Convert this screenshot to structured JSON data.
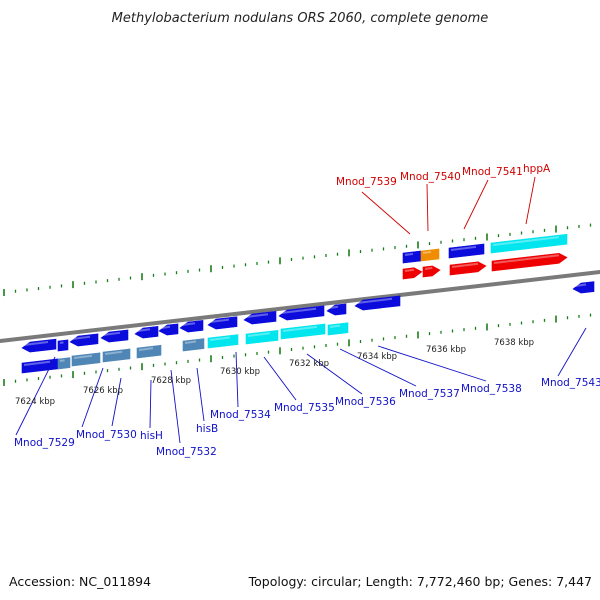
{
  "title": "Methylobacterium nodulans ORS 2060, complete genome",
  "footer": {
    "accession": "Accession: NC_011894",
    "summary": "Topology: circular; Length: 7,772,460 bp; Genes: 7,447"
  },
  "colors": {
    "blue": "#0b0bdc",
    "steel": "#4f86b5",
    "cyan": "#00e5ee",
    "red": "#ee0000",
    "orange": "#f08c00",
    "tick": "#1a7f1a",
    "backbone": "#7a7a7a",
    "label_blue": "#1010c8",
    "label_red": "#d00000"
  },
  "ruler": [
    {
      "label": "7624 kbp"
    },
    {
      "label": "7626 kbp"
    },
    {
      "label": "7628 kbp"
    },
    {
      "label": "7630 kbp"
    },
    {
      "label": "7632 kbp"
    },
    {
      "label": "7634 kbp"
    },
    {
      "label": "7636 kbp"
    },
    {
      "label": "7638 kbp"
    }
  ],
  "bottom_labels": [
    {
      "text": "Mnod_7529"
    },
    {
      "text": "Mnod_7530"
    },
    {
      "text": "hisH"
    },
    {
      "text": "Mnod_7532"
    },
    {
      "text": "hisB"
    },
    {
      "text": "Mnod_7534"
    },
    {
      "text": "Mnod_7535"
    },
    {
      "text": "Mnod_7536"
    },
    {
      "text": "Mnod_7537"
    },
    {
      "text": "Mnod_7538"
    },
    {
      "text": "Mnod_7543"
    }
  ],
  "top_labels": [
    {
      "text": "Mnod_7539"
    },
    {
      "text": "Mnod_7540"
    },
    {
      "text": "Mnod_7541"
    },
    {
      "text": "hppA"
    }
  ]
}
